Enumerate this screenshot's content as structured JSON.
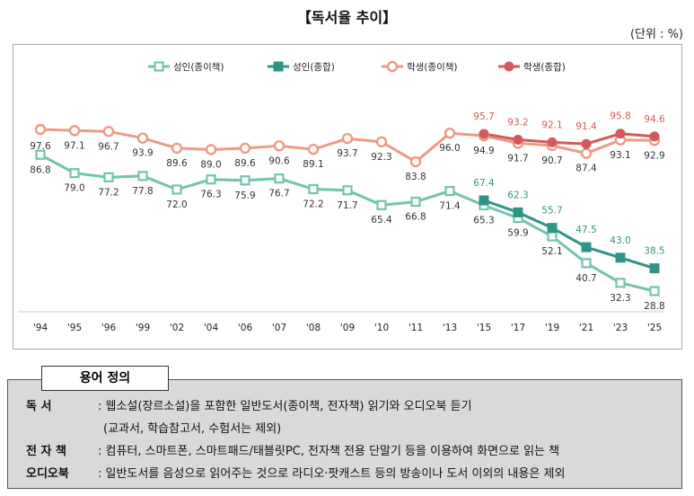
{
  "title": "【독서율 추이】",
  "unit": "(단위 : %)",
  "chart_data": {
    "type": "line",
    "categories": [
      "'94",
      "'95",
      "'96",
      "'99",
      "'02",
      "'04",
      "'06",
      "'07",
      "'08",
      "'09",
      "'10",
      "'11",
      "'13",
      "'15",
      "'17",
      "'19",
      "'21",
      "'23",
      "'25"
    ],
    "legend_position": "top",
    "grid": false,
    "series": [
      {
        "name": "성인(종이책)",
        "color": "#72c3b0",
        "marker": "open-square",
        "values": [
          86.8,
          79.0,
          77.2,
          77.8,
          72.0,
          76.3,
          75.9,
          76.7,
          72.2,
          71.7,
          65.4,
          66.8,
          71.4,
          65.3,
          59.9,
          52.1,
          40.7,
          32.3,
          28.8
        ]
      },
      {
        "name": "성인(종합)",
        "color": "#2e9485",
        "marker": "filled-square",
        "values": [
          null,
          null,
          null,
          null,
          null,
          null,
          null,
          null,
          null,
          null,
          null,
          null,
          null,
          67.4,
          62.3,
          55.7,
          47.5,
          43.0,
          38.5
        ]
      },
      {
        "name": "학생(종이책)",
        "color": "#ec9a86",
        "marker": "open-circle",
        "values": [
          97.6,
          97.1,
          96.7,
          93.9,
          89.6,
          89.0,
          89.6,
          90.6,
          89.1,
          93.7,
          92.3,
          83.8,
          96.0,
          94.9,
          91.7,
          90.7,
          87.4,
          93.1,
          92.9
        ]
      },
      {
        "name": "학생(종합)",
        "color": "#d25a5a",
        "marker": "filled-circle",
        "values": [
          null,
          null,
          null,
          null,
          null,
          null,
          null,
          null,
          null,
          null,
          null,
          null,
          null,
          95.7,
          93.2,
          92.1,
          91.4,
          95.8,
          94.6
        ]
      }
    ]
  },
  "definitions": {
    "heading": "용어 정의",
    "rows": [
      {
        "term": "독      서",
        "text": ": 웹소설(장르소설)을 포함한 일반도서(종이책, 전자책) 읽기와 오디오북 듣기"
      },
      {
        "term": "",
        "text": "(교과서, 학습참고서, 수험서는 제외)"
      },
      {
        "term": "전 자 책",
        "text": ": 컴퓨터, 스마트폰, 스마트패드/태블릿PC, 전자책 전용 단말기 등을 이용하여 화면으로 읽는 책"
      },
      {
        "term": "오디오북",
        "text": ": 일반도서를 음성으로 읽어주는 것으로 라디오·팟캐스트 등의 방송이나 도서 이외의 내용은 제외"
      }
    ]
  }
}
